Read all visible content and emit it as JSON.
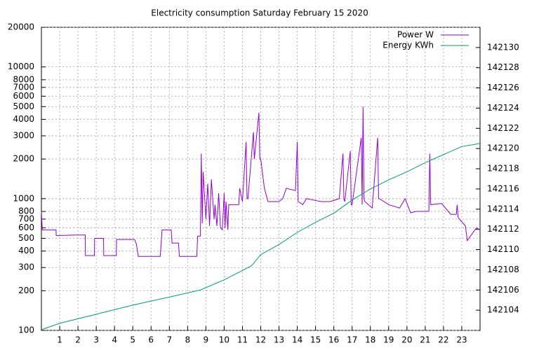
{
  "chart_data": {
    "type": "line",
    "title": "Electricity consumption Saturday February 15 2020",
    "xlim": [
      0,
      24
    ],
    "xticks": [
      1,
      2,
      3,
      4,
      5,
      6,
      7,
      8,
      9,
      10,
      11,
      12,
      13,
      14,
      15,
      16,
      17,
      18,
      19,
      20,
      21,
      22,
      23
    ],
    "ylim": [
      100,
      20000
    ],
    "yticks": [
      100,
      200,
      300,
      400,
      500,
      600,
      700,
      800,
      1000,
      2000,
      3000,
      4000,
      5000,
      6000,
      7000,
      8000,
      10000,
      20000
    ],
    "ylog": true,
    "y2lim": [
      142102,
      142132
    ],
    "y2ticks": [
      142104,
      142106,
      142108,
      142110,
      142112,
      142114,
      142116,
      142118,
      142120,
      142122,
      142124,
      142126,
      142128,
      142130
    ],
    "grid": true,
    "legend": "top-right",
    "series": [
      {
        "name": "Power W",
        "color": "#9400d3",
        "x": [
          0,
          0.05,
          0.8,
          0.81,
          1.9,
          2.4,
          2.41,
          2.9,
          2.91,
          3.4,
          3.41,
          4.1,
          4.11,
          5.1,
          5.2,
          5.3,
          6.5,
          6.55,
          6.6,
          7.1,
          7.15,
          7.5,
          7.55,
          8.5,
          8.55,
          8.7,
          8.75,
          8.8,
          8.85,
          9.0,
          9.1,
          9.2,
          9.3,
          9.45,
          9.5,
          9.6,
          9.7,
          9.8,
          9.9,
          10.0,
          10.05,
          10.1,
          10.2,
          10.25,
          10.8,
          10.85,
          11.0,
          11.2,
          11.25,
          11.3,
          11.6,
          11.65,
          11.9,
          11.95,
          12.0,
          12.2,
          12.4,
          13.0,
          13.2,
          13.4,
          13.9,
          14.0,
          14.05,
          14.3,
          14.5,
          15.3,
          15.8,
          16.3,
          16.5,
          16.55,
          16.6,
          16.9,
          16.95,
          17.0,
          17.5,
          17.55,
          17.6,
          17.65,
          17.7,
          18.1,
          18.4,
          18.45,
          18.5,
          19.0,
          19.6,
          19.9,
          20.2,
          20.5,
          21.2,
          21.25,
          21.3,
          21.9,
          22.4,
          22.7,
          22.75,
          22.8,
          23.2,
          23.3,
          23.8,
          24
        ],
        "values": [
          800,
          580,
          580,
          525,
          530,
          530,
          370,
          370,
          500,
          500,
          370,
          370,
          490,
          490,
          450,
          365,
          365,
          450,
          580,
          580,
          460,
          460,
          365,
          365,
          520,
          520,
          2200,
          650,
          1600,
          700,
          1300,
          620,
          1400,
          700,
          900,
          620,
          1100,
          600,
          580,
          1100,
          600,
          950,
          580,
          900,
          900,
          1200,
          950,
          2700,
          1000,
          1000,
          3200,
          2000,
          4500,
          2000,
          2000,
          1200,
          950,
          950,
          1000,
          1200,
          1150,
          2700,
          950,
          900,
          1000,
          950,
          950,
          1000,
          2200,
          1000,
          950,
          2300,
          900,
          900,
          2900,
          900,
          5000,
          1000,
          950,
          850,
          2900,
          1000,
          1000,
          900,
          850,
          1000,
          780,
          800,
          800,
          2200,
          900,
          920,
          760,
          760,
          900,
          720,
          620,
          480,
          600,
          580
        ]
      },
      {
        "name": "Energy KWh",
        "color": "#009e73",
        "axis": "y2",
        "x": [
          0,
          1,
          3,
          5,
          7,
          8.7,
          10,
          11.5,
          12,
          13,
          14,
          15,
          16,
          17,
          18,
          19,
          20,
          21,
          22,
          23,
          24
        ],
        "values": [
          142102.07,
          142102.7,
          142103.6,
          142104.5,
          142105.3,
          142106,
          142107,
          142108.4,
          142109.5,
          142110.5,
          142111.7,
          142112.7,
          142113.6,
          142114.9,
          142116,
          142116.9,
          142117.7,
          142118.6,
          142119.4,
          142120.2,
          142120.5
        ]
      }
    ]
  }
}
